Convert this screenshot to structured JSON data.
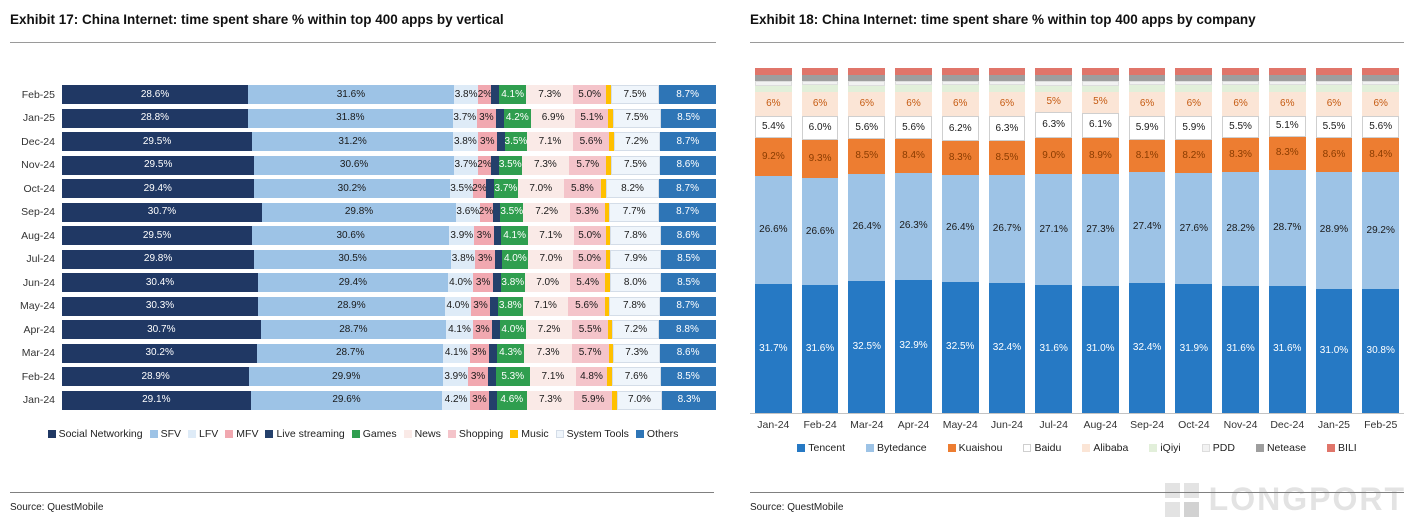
{
  "page": {
    "left": {
      "title": "Exhibit 17: China Internet: time spent share % within top 400 apps by vertical",
      "source": "Source: QuestMobile"
    },
    "right": {
      "title": "Exhibit 18: China Internet: time spent share % within top 400 apps by company",
      "source": "Source: QuestMobile"
    },
    "watermark": "LONGPORT"
  },
  "chart_data": [
    {
      "type": "bar",
      "orientation": "horizontal",
      "stacked": true,
      "title": "Exhibit 17: China Internet: time spent share % within top 400 apps by vertical",
      "unit": "%",
      "legend_position": "bottom",
      "categories": [
        "Feb-25",
        "Jan-25",
        "Dec-24",
        "Nov-24",
        "Oct-24",
        "Sep-24",
        "Aug-24",
        "Jul-24",
        "Jun-24",
        "May-24",
        "Apr-24",
        "Mar-24",
        "Feb-24",
        "Jan-24"
      ],
      "series": [
        {
          "name": "Social Networking",
          "color": "#203864",
          "text_color": "#ffffff",
          "label": "dec1",
          "values": [
            28.6,
            28.8,
            29.5,
            29.5,
            29.4,
            30.7,
            29.5,
            29.8,
            30.4,
            30.3,
            30.7,
            30.2,
            28.9,
            29.1
          ]
        },
        {
          "name": "SFV",
          "color": "#9dc3e6",
          "text_color": "#1a1a1a",
          "label": "dec1",
          "values": [
            31.6,
            31.8,
            31.2,
            30.6,
            30.2,
            29.8,
            30.6,
            30.5,
            29.4,
            28.9,
            28.7,
            28.7,
            29.9,
            29.6
          ]
        },
        {
          "name": "LFV",
          "color": "#deebf7",
          "text_color": "#1a1a1a",
          "label": "dec1",
          "values": [
            3.8,
            3.7,
            3.8,
            3.7,
            3.5,
            3.6,
            3.9,
            3.8,
            4.0,
            4.0,
            4.1,
            4.1,
            3.9,
            4.2
          ]
        },
        {
          "name": "MFV",
          "color": "#f1a8b0",
          "text_color": "#1a1a1a",
          "label": "int",
          "values": [
            2,
            3,
            3,
            2,
            2,
            2,
            3,
            3,
            3,
            3,
            3,
            3,
            3,
            3
          ]
        },
        {
          "name": "Live streaming",
          "color": "#24406b",
          "text_color": "#ffffff",
          "label": "none",
          "values": [
            1.2,
            1.2,
            1.2,
            1.2,
            1.2,
            1.2,
            1.2,
            1.2,
            1.2,
            1.2,
            1.2,
            1.2,
            1.2,
            1.2
          ]
        },
        {
          "name": "Games",
          "color": "#2f9e4f",
          "text_color": "#ffffff",
          "label": "dec1",
          "values": [
            4.1,
            4.2,
            3.5,
            3.5,
            3.7,
            3.5,
            4.1,
            4.0,
            3.8,
            3.8,
            4.0,
            4.3,
            5.3,
            4.6
          ]
        },
        {
          "name": "News",
          "color": "#faeae7",
          "text_color": "#1a1a1a",
          "label": "dec1",
          "values": [
            7.3,
            6.9,
            7.1,
            7.3,
            7.0,
            7.2,
            7.1,
            7.0,
            7.0,
            7.1,
            7.2,
            7.3,
            7.1,
            7.3
          ]
        },
        {
          "name": "Shopping",
          "color": "#f4c4ca",
          "text_color": "#1a1a1a",
          "label": "dec1",
          "values": [
            5.0,
            5.1,
            5.6,
            5.7,
            5.8,
            5.3,
            5.0,
            5.0,
            5.4,
            5.6,
            5.5,
            5.7,
            4.8,
            5.9
          ]
        },
        {
          "name": "Music",
          "color": "#ffc000",
          "text_color": "#1a1a1a",
          "label": "none",
          "values": [
            0.7,
            0.7,
            0.7,
            0.7,
            0.7,
            0.7,
            0.7,
            0.7,
            0.7,
            0.7,
            0.7,
            0.7,
            0.7,
            0.7
          ]
        },
        {
          "name": "System Tools",
          "color": "#eff5fb",
          "text_color": "#1a1a1a",
          "label": "dec1",
          "border": "#d4dde8",
          "values": [
            7.5,
            7.5,
            7.2,
            7.5,
            8.2,
            7.7,
            7.8,
            7.9,
            8.0,
            7.8,
            7.2,
            7.3,
            7.6,
            7.0
          ]
        },
        {
          "name": "Others",
          "color": "#2e75b6",
          "text_color": "#ffffff",
          "label": "dec1",
          "values": [
            8.7,
            8.5,
            8.7,
            8.6,
            8.7,
            8.7,
            8.6,
            8.5,
            8.5,
            8.7,
            8.8,
            8.6,
            8.5,
            8.3
          ]
        }
      ]
    },
    {
      "type": "bar",
      "orientation": "vertical",
      "stacked": true,
      "title": "Exhibit 18: China Internet: time spent share % within top 400 apps by company",
      "unit": "%",
      "legend_position": "bottom",
      "categories": [
        "Jan-24",
        "Feb-24",
        "Mar-24",
        "Apr-24",
        "May-24",
        "Jun-24",
        "Jul-24",
        "Aug-24",
        "Sep-24",
        "Oct-24",
        "Nov-24",
        "Dec-24",
        "Jan-25",
        "Feb-25"
      ],
      "series": [
        {
          "name": "Tencent",
          "color": "#2679c4",
          "text_color": "#ffffff",
          "label": "dec1",
          "values": [
            31.7,
            31.6,
            32.5,
            32.9,
            32.5,
            32.4,
            31.6,
            31.0,
            32.4,
            31.9,
            31.6,
            31.6,
            31.0,
            30.8
          ]
        },
        {
          "name": "Bytedance",
          "color": "#9dc3e6",
          "text_color": "#1a1a1a",
          "label": "dec1",
          "values": [
            26.6,
            26.6,
            26.4,
            26.3,
            26.4,
            26.7,
            27.1,
            27.3,
            27.4,
            27.6,
            28.2,
            28.7,
            28.9,
            29.2
          ]
        },
        {
          "name": "Kuaishou",
          "color": "#ed7d31",
          "text_color": "#8a3c00",
          "label": "dec1",
          "values": [
            9.2,
            9.3,
            8.5,
            8.4,
            8.3,
            8.5,
            9.0,
            8.9,
            8.1,
            8.2,
            8.3,
            8.3,
            8.6,
            8.4
          ]
        },
        {
          "name": "Baidu",
          "color": "#ffffff",
          "text_color": "#1a1a1a",
          "label": "dec1",
          "border": "#cfcfcf",
          "values": [
            5.4,
            6.0,
            5.6,
            5.6,
            6.2,
            6.3,
            6.3,
            6.1,
            5.9,
            5.9,
            5.5,
            5.1,
            5.5,
            5.6
          ]
        },
        {
          "name": "Alibaba",
          "color": "#fbe5d6",
          "text_color": "#c55a11",
          "label": "int",
          "values": [
            6,
            6,
            6,
            6,
            6,
            6,
            5,
            5,
            6,
            6,
            6,
            6,
            6,
            6
          ]
        },
        {
          "name": "iQiyi",
          "color": "#e2efda",
          "text_color": "#1a1a1a",
          "label": "none",
          "values": [
            1.6,
            1.6,
            1.6,
            1.6,
            1.6,
            1.6,
            1.6,
            1.6,
            1.6,
            1.6,
            1.6,
            1.6,
            1.6,
            1.6
          ]
        },
        {
          "name": "PDD",
          "color": "#f2f2f2",
          "text_color": "#1a1a1a",
          "label": "none",
          "border": "#dddddd",
          "values": [
            1.1,
            1.1,
            1.1,
            1.1,
            1.1,
            1.1,
            1.1,
            1.1,
            1.1,
            1.1,
            1.1,
            1.1,
            1.1,
            1.1
          ]
        },
        {
          "name": "Netease",
          "color": "#9e9e9e",
          "text_color": "#ffffff",
          "label": "none",
          "values": [
            1.5,
            1.5,
            1.5,
            1.5,
            1.5,
            1.5,
            1.5,
            1.5,
            1.5,
            1.5,
            1.5,
            1.5,
            1.5,
            1.5
          ]
        },
        {
          "name": "BILI",
          "color": "#e0756a",
          "text_color": "#ffffff",
          "label": "none",
          "values": [
            1.7,
            1.7,
            1.7,
            1.7,
            1.7,
            1.7,
            1.7,
            1.7,
            1.7,
            1.7,
            1.7,
            1.7,
            1.7,
            1.7
          ]
        }
      ]
    }
  ]
}
